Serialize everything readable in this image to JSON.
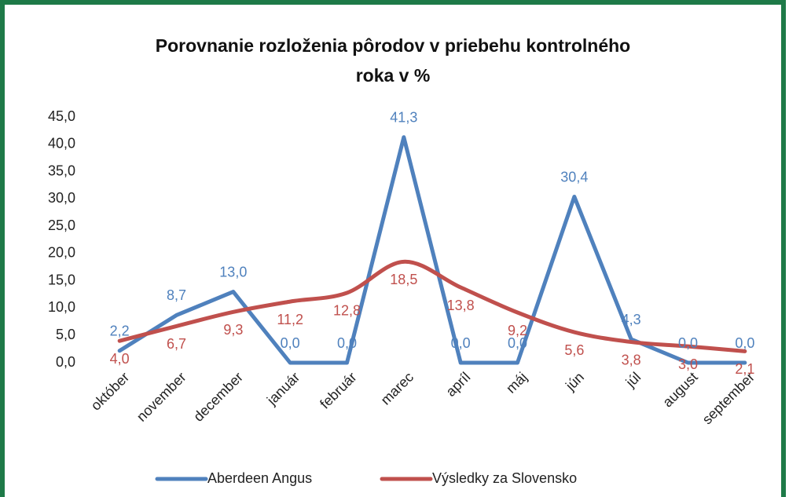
{
  "chart_data": {
    "type": "line",
    "title": [
      "Porovnanie rozloženia pôrodov v priebehu kontrolného",
      "roka v %"
    ],
    "categories": [
      "október",
      "november",
      "december",
      "január",
      "február",
      "marec",
      "apríl",
      "máj",
      "jún",
      "júl",
      "august",
      "september"
    ],
    "series": [
      {
        "name": "Aberdeen Angus",
        "color": "#4f81bd",
        "smooth": false,
        "values": [
          2.2,
          8.7,
          13.0,
          0.0,
          0.0,
          41.3,
          0.0,
          0.0,
          30.4,
          4.3,
          0.0,
          0.0
        ],
        "value_labels": [
          "2,2",
          "8,7",
          "13,0",
          "0,0",
          "0,0",
          "41,3",
          "0,0",
          "0,0",
          "30,4",
          "4,3",
          "0,0",
          "0,0"
        ]
      },
      {
        "name": "Výsledky za Slovensko",
        "color": "#c0504d",
        "smooth": true,
        "values": [
          4.0,
          6.7,
          9.3,
          11.2,
          12.8,
          18.5,
          13.8,
          9.2,
          5.6,
          3.8,
          3.0,
          2.1
        ],
        "value_labels": [
          "4,0",
          "6,7",
          "9,3",
          "11,2",
          "12,8",
          "18,5",
          "13,8",
          "9,2",
          "5,6",
          "3,8",
          "3,0",
          "2,1"
        ]
      }
    ],
    "ylim": [
      0,
      45
    ],
    "yticks": [
      {
        "value": 0,
        "label": "0,0"
      },
      {
        "value": 5,
        "label": "5,0"
      },
      {
        "value": 10,
        "label": "10,0"
      },
      {
        "value": 15,
        "label": "15,0"
      },
      {
        "value": 20,
        "label": "20,0"
      },
      {
        "value": 25,
        "label": "25,0"
      },
      {
        "value": 30,
        "label": "30,0"
      },
      {
        "value": 35,
        "label": "35,0"
      },
      {
        "value": 40,
        "label": "40,0"
      },
      {
        "value": 45,
        "label": "45,0"
      }
    ],
    "grid": false,
    "legend": "bottom"
  }
}
